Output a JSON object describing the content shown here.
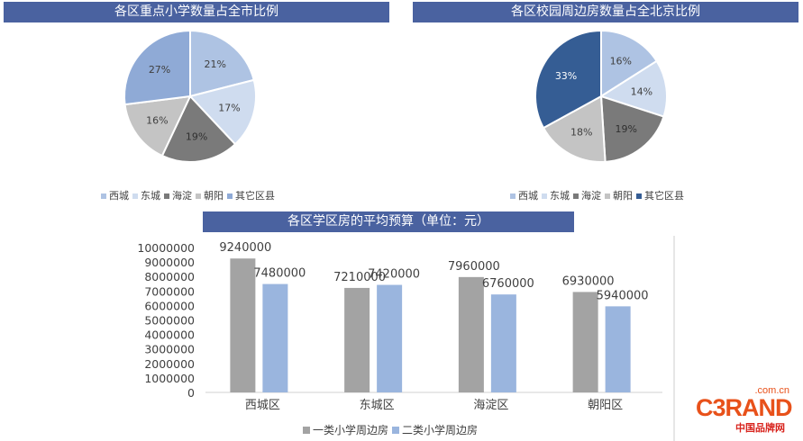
{
  "titles": {
    "pie1": "各区重点小学数量占全市比例",
    "pie2": "各区校园周边房数量占全北京比例",
    "bar": "各区学区房的平均预算（单位：元）"
  },
  "colors": {
    "西城": "#aec3e3",
    "东城": "#cfdcef",
    "海淀": "#7a7a7a",
    "朝阳": "#c4c4c4",
    "其它区县": "#8faad6",
    "其它区县_pie2": "#355d94",
    "一类": "#a3a3a3",
    "二类": "#9ab5de",
    "title_bar": "#4a62a0",
    "brand": "#e8511a"
  },
  "chart_data": [
    {
      "type": "pie",
      "title": "各区重点小学数量占全市比例",
      "labels": [
        "西城",
        "东城",
        "海淀",
        "朝阳",
        "其它区县"
      ],
      "values": [
        21,
        17,
        19,
        16,
        27
      ],
      "value_labels": [
        "21%",
        "17%",
        "19%",
        "16%",
        "27%"
      ],
      "legend_position": "bottom"
    },
    {
      "type": "pie",
      "title": "各区校园周边房数量占全北京比例",
      "labels": [
        "西城",
        "东城",
        "海淀",
        "朝阳",
        "其它区县"
      ],
      "values": [
        16,
        14,
        19,
        18,
        33
      ],
      "value_labels": [
        "16%",
        "14%",
        "19%",
        "18%",
        "33%"
      ],
      "legend_position": "bottom"
    },
    {
      "type": "bar",
      "title": "各区学区房的平均预算（单位：元）",
      "categories": [
        "西城区",
        "东城区",
        "海淀区",
        "朝阳区"
      ],
      "series": [
        {
          "name": "一类小学周边房",
          "values": [
            9240000,
            7210000,
            7960000,
            6930000
          ]
        },
        {
          "name": "二类小学周边房",
          "values": [
            7480000,
            7420000,
            6760000,
            5940000
          ]
        }
      ],
      "ylim": [
        0,
        10000000
      ],
      "yticks": [
        "0",
        "1000000",
        "2000000",
        "3000000",
        "4000000",
        "5000000",
        "6000000",
        "7000000",
        "8000000",
        "9000000",
        "10000000"
      ],
      "grid": false,
      "legend_position": "bottom"
    }
  ],
  "logo": {
    "com": ".com.cn",
    "main": "C3RAND",
    "sub": "中国品牌网"
  }
}
